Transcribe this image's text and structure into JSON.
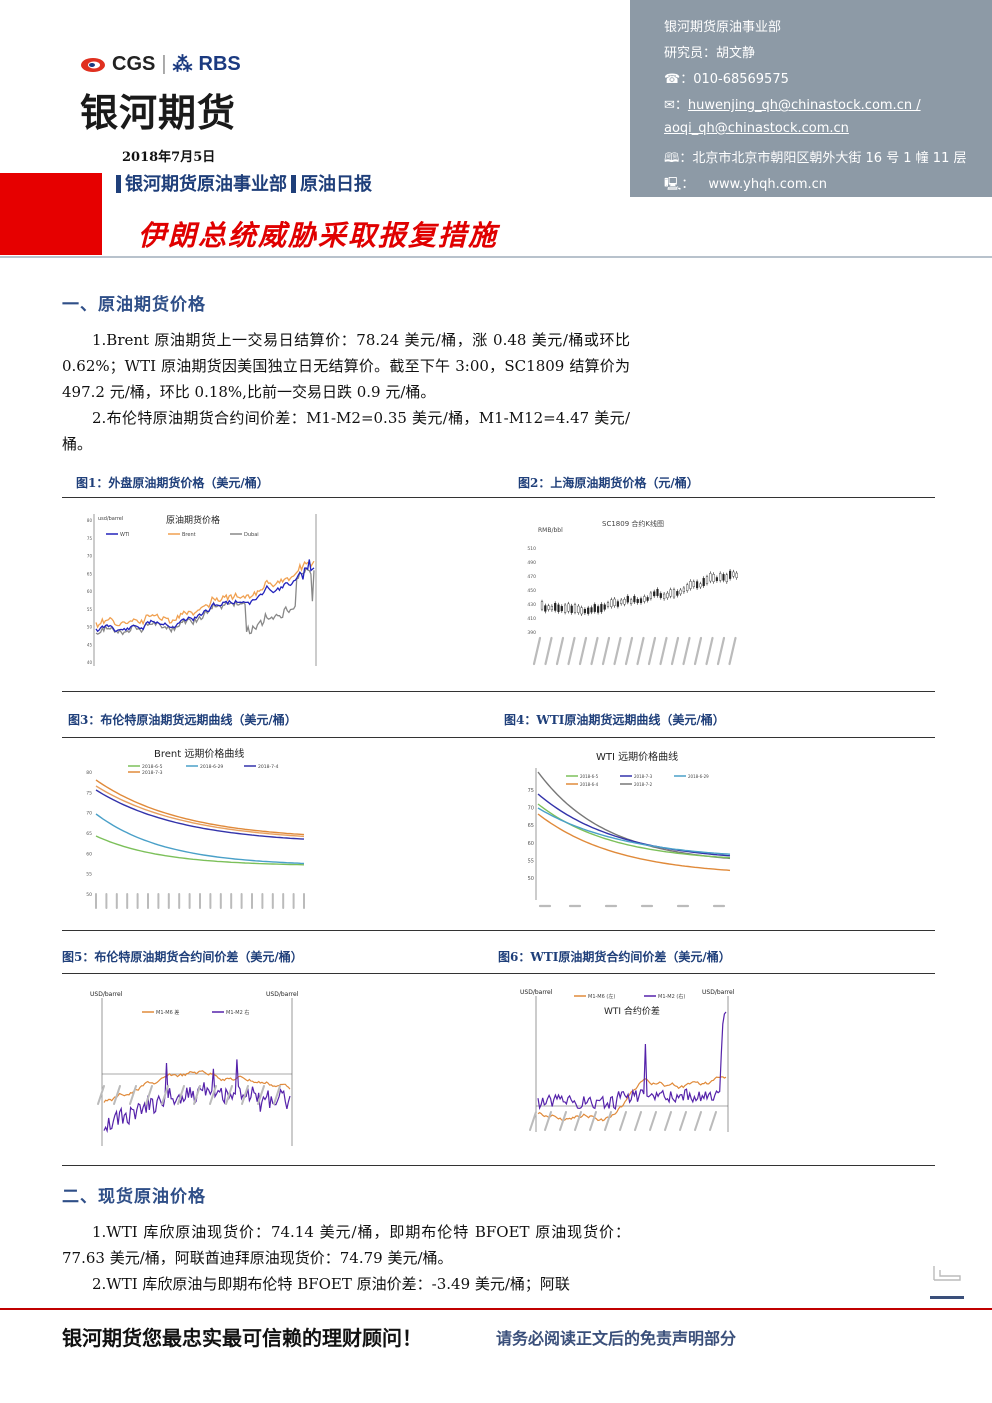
{
  "header": {
    "logo_left": "CGS",
    "logo_sep": "|",
    "logo_right": "RBS",
    "brand_name": "银河期货",
    "date": "2018年7月5日",
    "dept": "银河期货原油事业部",
    "report_type": "原油日报",
    "headline": "伊朗总统威胁采取报复措施"
  },
  "contact": {
    "dept": "银河期货原油事业部",
    "researcher": "研究员：胡文静",
    "phone": "☎：010-68569575",
    "email1": "huwenjing_qh@chinastock.com.cn /",
    "email1_prefix": "✉：",
    "email2": "aoqi_qh@chinastock.com.cn",
    "address": "🕮：北京市北京市朝阳区朝外大街 16 号 1 幢 11 层",
    "website_prefix": "🖳：",
    "website": "www.yhqh.com.cn"
  },
  "section1": {
    "title": "一、原油期货价格",
    "p1": "1.Brent 原油期货上一交易日结算价：78.24 美元/桶，涨 0.48 美元/桶或环比 0.62%；WTI 原油期货因美国独立日无结算价。截至下午 3:00，SC1809 结算价为 497.2 元/桶，环比 0.18%,比前一交易日跌 0.9 元/桶。",
    "p2": "2.布伦特原油期货合约间价差：M1-M2=0.35 美元/桶，M1-M12=4.47 美元/桶。"
  },
  "figures": {
    "fig1": "图1：外盘原油期货价格（美元/桶）",
    "fig2": "图2：上海原油期货价格（元/桶）",
    "fig3": "图3：布伦特原油期货远期曲线（美元/桶）",
    "fig4": "图4：WTI原油期货远期曲线（美元/桶）",
    "fig5": "图5：布伦特原油期货合约间价差（美元/桶）",
    "fig6": "图6：WTI原油期货合约间价差（美元/桶）"
  },
  "chart_data": [
    {
      "type": "line",
      "title": "原油期货价格",
      "ylabel": "usd/barrel",
      "series": [
        {
          "name": "WTI",
          "color": "#2222bb"
        },
        {
          "name": "Brent",
          "color": "#f0a050"
        },
        {
          "name": "Dubai",
          "color": "#888888"
        }
      ],
      "ylim": [
        40,
        80
      ],
      "yticks": [
        "80",
        "75",
        "70",
        "65",
        "60",
        "55",
        "50",
        "45",
        "40"
      ]
    },
    {
      "type": "line",
      "title": "SC1809 合约K线图",
      "ylabel": "RMB/bbl",
      "yticks": [
        "510",
        "490",
        "470",
        "450",
        "430",
        "410",
        "390"
      ]
    },
    {
      "type": "line",
      "title": "Brent 远期价格曲线",
      "series": [
        {
          "name": "2018-6-5",
          "color": "#7cc05a"
        },
        {
          "name": "2018-6-29",
          "color": "#4aa0c8"
        },
        {
          "name": "2018-7-4",
          "color": "#3333aa"
        },
        {
          "name": "2018-7-3",
          "color": "#e08a3a"
        }
      ],
      "yticks": [
        "80",
        "75",
        "70",
        "65",
        "60",
        "55",
        "50"
      ]
    },
    {
      "type": "line",
      "title": "WTI 远期价格曲线",
      "series": [
        {
          "name": "2018-6-5",
          "color": "#7cc05a"
        },
        {
          "name": "2018-7-3",
          "color": "#3333aa"
        },
        {
          "name": "2018-6-29",
          "color": "#4aa0c8"
        },
        {
          "name": "2018-6-4",
          "color": "#e08a3a"
        },
        {
          "name": "2018-7-2",
          "color": "#777777"
        }
      ],
      "yticks": [
        "75",
        "70",
        "65",
        "60",
        "55",
        "50"
      ]
    },
    {
      "type": "line",
      "title": "",
      "ylabel": "USD/barrel",
      "y2label": "USD/barrel",
      "series": [
        {
          "name": "M1-M6 差",
          "color": "#e08a3a"
        },
        {
          "name": "M1-M2 右",
          "color": "#5522aa"
        }
      ]
    },
    {
      "type": "line",
      "title": "WTI 合约价差",
      "ylabel": "USD/barrel",
      "y2label": "USD/barrel",
      "series": [
        {
          "name": "M1-M6 (左)",
          "color": "#e08a3a"
        },
        {
          "name": "M1-M2 (右)",
          "color": "#5522aa"
        }
      ]
    }
  ],
  "section2": {
    "title": "二、现货原油价格",
    "p1": "1.WTI 库欣原油现货价：74.14 美元/桶，即期布伦特 BFOET 原油现货价：77.63 美元/桶，阿联酋迪拜原油现货价：74.79 美元/桶。",
    "p2": "2.WTI 库欣原油与即期布伦特 BFOET 原油价差：-3.49 美元/桶；阿联"
  },
  "footer": {
    "left": "银河期货您最忠实最可信赖的理财顾问！",
    "right": "请务必阅读正文后的免责声明部分"
  }
}
